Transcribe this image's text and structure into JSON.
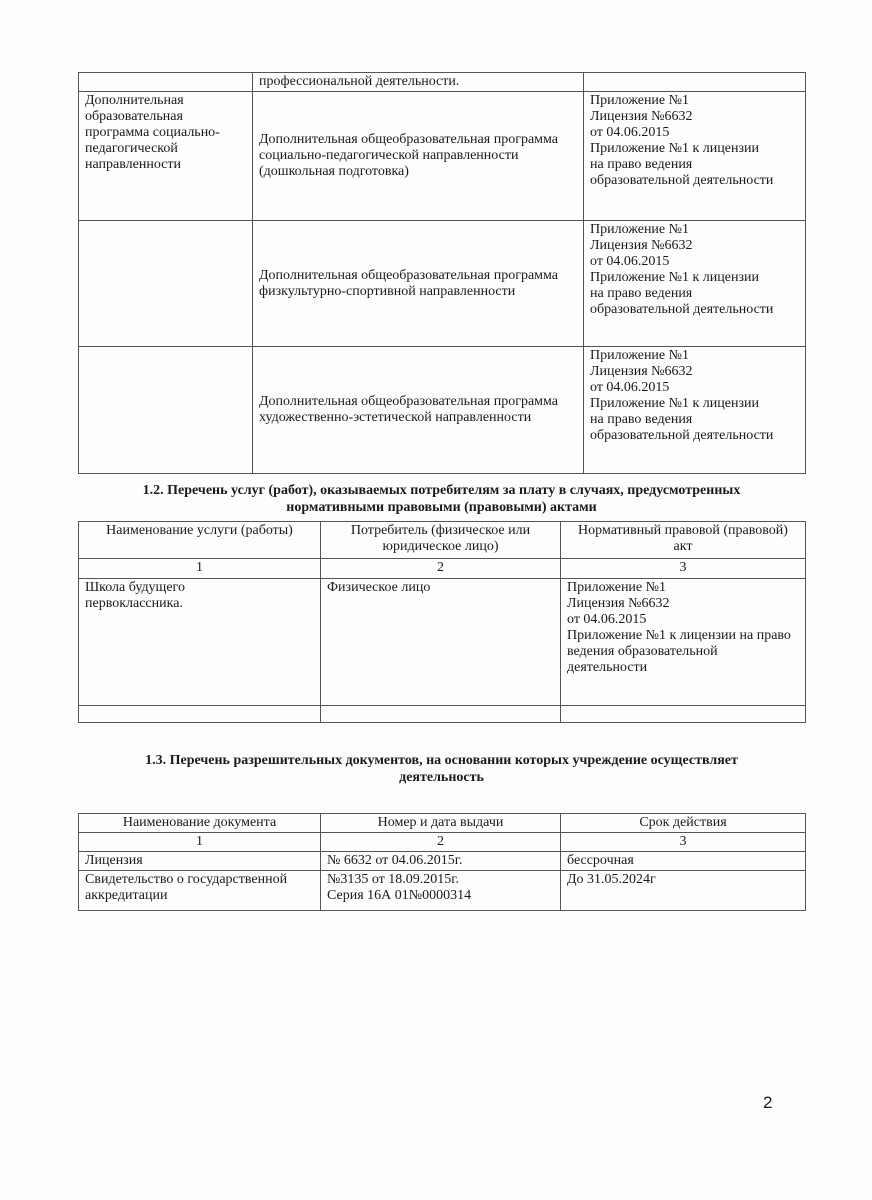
{
  "table1": {
    "rows": [
      {
        "col1": "",
        "col2": "профессиональной деятельности.",
        "col3": ""
      },
      {
        "col1": "Дополнительная\nобразовательная\nпрограмма социально-\nпедагогической\nнаправленности",
        "col2": " Дополнительная общеобразовательная программа социально-педагогической направленности (дошкольная подготовка)",
        "col3": "Приложение №1\nЛицензия №6632\n от 04.06.2015\nПриложение №1 к лицензии\nна право ведения\nобразовательной деятельности"
      },
      {
        "col1": "",
        "col2": "Дополнительная общеобразовательная программа физкультурно-спортивной направленности",
        "col3": "Приложение №1\nЛицензия №6632\n от 04.06.2015\nПриложение №1 к лицензии\nна право ведения\nобразовательной деятельности"
      },
      {
        "col1": "",
        "col2": "Дополнительная общеобразовательная программа художественно-эстетической направленности",
        "col3": "Приложение №1\nЛицензия №6632\n от 04.06.2015\nПриложение №1 к лицензии\nна право ведения\nобразовательной деятельности"
      }
    ]
  },
  "section12": {
    "title": "1.2. Перечень услуг (работ), оказываемых потребителям за плату в случаях, предусмотренных нормативными правовыми (правовыми) актами",
    "headers": [
      "Наименование услуги (работы)",
      "Потребитель (физическое или юридическое лицо)",
      "Нормативный правовой (правовой) акт"
    ],
    "numbers": [
      "1",
      "2",
      "3"
    ],
    "rows": [
      {
        "col1": "  Школа будущего\nпервоклассника.",
        "col2": "Физическое лицо",
        "col3": "Приложение №1\nЛицензия №6632\n от 04.06.2015\nПриложение №1 к лицензии на право ведения образовательной деятельности"
      },
      {
        "col1": "",
        "col2": "",
        "col3": ""
      }
    ]
  },
  "section13": {
    "title": "1.3. Перечень разрешительных документов, на основании которых учреждение осуществляет деятельность",
    "headers": [
      "Наименование документа",
      "Номер и дата выдачи",
      "Срок действия"
    ],
    "numbers": [
      "1",
      "2",
      "3"
    ],
    "rows": [
      {
        "col1": "Лицензия",
        "col2": "№ 6632 от 04.06.2015г.",
        "col3": "бессрочная"
      },
      {
        "col1": "Свидетельство о государственной аккредитации",
        "col2": "№3135 от 18.09.2015г.\n Серия 16А 01№0000314",
        "col3": "До 31.05.2024г"
      }
    ]
  },
  "page_number": "2"
}
